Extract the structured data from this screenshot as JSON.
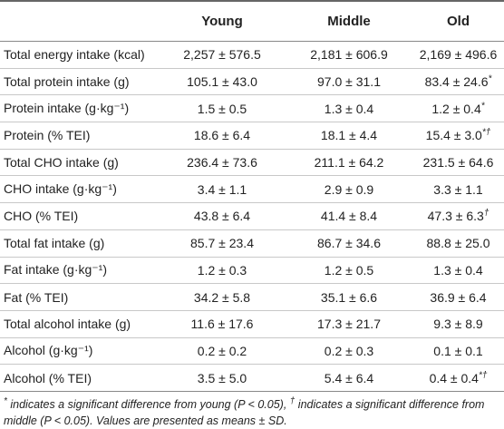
{
  "table": {
    "header": [
      "",
      "Young",
      "Middle",
      "Old"
    ],
    "rows": [
      [
        "Total energy intake (kcal)",
        "2,257 ± 576.5",
        "2,181 ± 606.9",
        "2,169 ± 496.6"
      ],
      [
        "Total protein intake (g)",
        "105.1 ± 43.0",
        "97.0 ± 31.1",
        {
          "text": "83.4 ± 24.6",
          "note": "*"
        }
      ],
      [
        "Protein intake (g·kg⁻¹)",
        "1.5 ± 0.5",
        "1.3 ± 0.4",
        {
          "text": "1.2 ± 0.4",
          "note": "*"
        }
      ],
      [
        "Protein (% TEI)",
        "18.6 ± 6.4",
        "18.1 ± 4.4",
        {
          "text": "15.4 ± 3.0",
          "note": "*†"
        }
      ],
      [
        "Total CHO intake (g)",
        "236.4 ± 73.6",
        "211.1 ± 64.2",
        "231.5 ± 64.6"
      ],
      [
        "CHO intake (g·kg⁻¹)",
        "3.4 ± 1.1",
        "2.9 ± 0.9",
        "3.3 ± 1.1"
      ],
      [
        "CHO (% TEI)",
        "43.8 ± 6.4",
        "41.4 ± 8.4",
        {
          "text": "47.3 ± 6.3",
          "note": "†"
        }
      ],
      [
        "Total fat intake (g)",
        "85.7 ± 23.4",
        "86.7 ± 34.6",
        "88.8 ± 25.0"
      ],
      [
        "Fat intake (g·kg⁻¹)",
        "1.2 ± 0.3",
        "1.2 ± 0.5",
        "1.3 ± 0.4"
      ],
      [
        "Fat (% TEI)",
        "34.2 ± 5.8",
        "35.1 ± 6.6",
        "36.9 ± 6.4"
      ],
      [
        "Total alcohol intake (g)",
        "11.6 ± 17.6",
        "17.3 ± 21.7",
        "9.3 ± 8.9"
      ],
      [
        "Alcohol (g·kg⁻¹)",
        "0.2 ± 0.2",
        "0.2 ± 0.3",
        "0.1 ± 0.1"
      ],
      [
        "Alcohol (% TEI)",
        "3.5 ± 5.0",
        "5.4 ± 6.4",
        {
          "text": "0.4 ± 0.4",
          "note": "*†"
        }
      ]
    ]
  },
  "footnote": {
    "mark1": "*",
    "text1": " indicates a significant difference from young (P < 0.05), ",
    "mark2": "†",
    "text2": " indicates a significant difference from middle (P < 0.05). Values are presented as means ± SD."
  }
}
